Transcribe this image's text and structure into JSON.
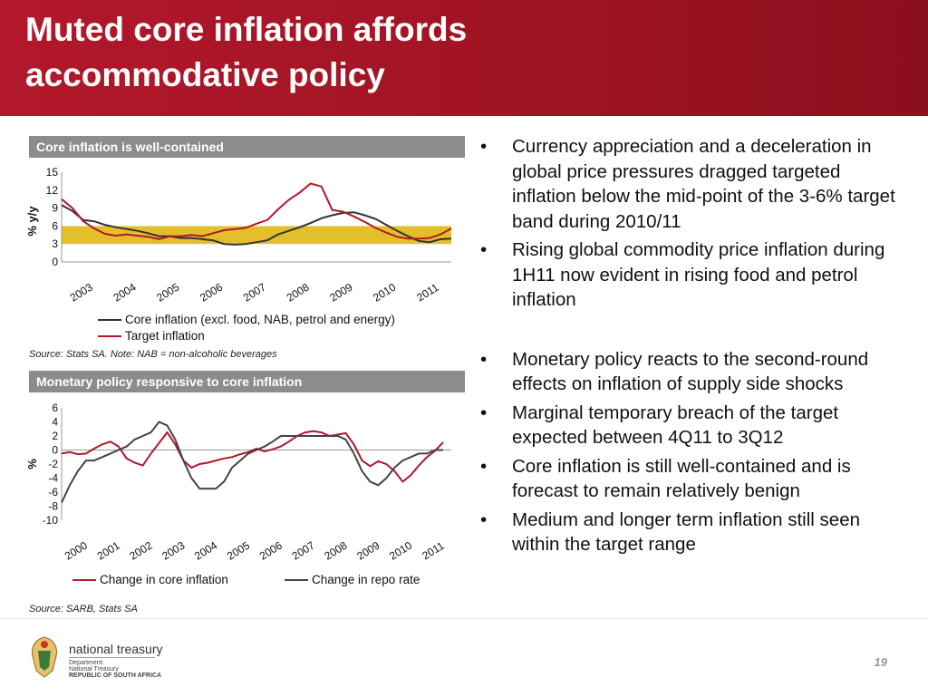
{
  "title": "Muted core inflation affords accommodative policy",
  "chart_data": [
    {
      "type": "line",
      "title": "Core inflation is well-contained",
      "ylabel": "% y/y",
      "ylim": [
        0,
        15
      ],
      "yticks": [
        "15",
        "12",
        "9",
        "6",
        "3",
        "0"
      ],
      "x_tick_labels": [
        "2003",
        "2004",
        "2005",
        "2006",
        "2007",
        "2008",
        "2009",
        "2010",
        "2011"
      ],
      "target_band": [
        3,
        6
      ],
      "band_color": "#e3c02b",
      "series": [
        {
          "name": "Core inflation (excl. food, NAB, petrol and energy)",
          "color": "#333333",
          "x": [
            2003.0,
            2003.25,
            2003.5,
            2003.75,
            2004.0,
            2004.25,
            2004.5,
            2004.75,
            2005.0,
            2005.25,
            2005.5,
            2005.75,
            2006.0,
            2006.25,
            2006.5,
            2006.75,
            2007.0,
            2007.25,
            2007.5,
            2007.75,
            2008.0,
            2008.25,
            2008.5,
            2008.75,
            2009.0,
            2009.25,
            2009.5,
            2009.75,
            2010.0,
            2010.25,
            2010.5,
            2010.75,
            2011.0,
            2011.25,
            2011.5,
            2011.75,
            2012.0
          ],
          "values": [
            9.5,
            8.5,
            7.0,
            6.8,
            6.2,
            5.8,
            5.5,
            5.2,
            4.8,
            4.3,
            4.3,
            4.0,
            4.0,
            3.8,
            3.6,
            3.0,
            2.9,
            3.0,
            3.3,
            3.6,
            4.6,
            5.2,
            5.8,
            6.5,
            7.3,
            7.8,
            8.2,
            8.3,
            7.8,
            7.2,
            6.2,
            5.2,
            4.3,
            3.5,
            3.3,
            3.8,
            3.9
          ]
        },
        {
          "name": "Target inflation",
          "color": "#b2182b",
          "x": [
            2003.0,
            2003.25,
            2003.5,
            2003.75,
            2004.0,
            2004.25,
            2004.5,
            2004.75,
            2005.0,
            2005.25,
            2005.5,
            2005.75,
            2006.0,
            2006.25,
            2006.5,
            2006.75,
            2007.0,
            2007.25,
            2007.5,
            2007.75,
            2008.0,
            2008.25,
            2008.5,
            2008.75,
            2009.0,
            2009.25,
            2009.5,
            2009.75,
            2010.0,
            2010.25,
            2010.5,
            2010.75,
            2011.0,
            2011.25,
            2011.5,
            2011.75,
            2012.0
          ],
          "values": [
            10.5,
            9.0,
            6.8,
            5.6,
            4.7,
            4.4,
            4.6,
            4.4,
            4.2,
            3.8,
            4.3,
            4.3,
            4.5,
            4.3,
            4.8,
            5.3,
            5.5,
            5.7,
            6.4,
            7.0,
            8.8,
            10.4,
            11.6,
            13.1,
            12.6,
            8.7,
            8.4,
            7.6,
            6.7,
            5.7,
            4.9,
            4.2,
            3.9,
            3.9,
            4.0,
            4.6,
            5.6
          ]
        }
      ]
    },
    {
      "type": "line",
      "title": "Monetary policy responsive to core inflation",
      "ylabel": "%",
      "ylim": [
        -10,
        6
      ],
      "yticks": [
        "6",
        "4",
        "2",
        "0",
        "-2",
        "-4",
        "-6",
        "-8",
        "-10"
      ],
      "x_tick_labels": [
        "2000",
        "2001",
        "2002",
        "2003",
        "2004",
        "2005",
        "2006",
        "2007",
        "2008",
        "2009",
        "2010",
        "2011"
      ],
      "series": [
        {
          "name": "Change in core inflation",
          "color": "#b2182b",
          "x": [
            2000.0,
            2000.25,
            2000.5,
            2000.75,
            2001.0,
            2001.25,
            2001.5,
            2001.75,
            2002.0,
            2002.25,
            2002.5,
            2002.75,
            2003.0,
            2003.25,
            2003.5,
            2003.75,
            2004.0,
            2004.25,
            2004.5,
            2004.75,
            2005.0,
            2005.25,
            2005.5,
            2005.75,
            2006.0,
            2006.25,
            2006.5,
            2006.75,
            2007.0,
            2007.25,
            2007.5,
            2007.75,
            2008.0,
            2008.25,
            2008.5,
            2008.75,
            2009.0,
            2009.25,
            2009.5,
            2009.75,
            2010.0,
            2010.25,
            2010.5,
            2010.75,
            2011.0,
            2011.25,
            2011.5,
            2011.75
          ],
          "values": [
            -0.5,
            -0.3,
            -0.6,
            -0.5,
            0.2,
            0.8,
            1.2,
            0.5,
            -1.2,
            -1.8,
            -2.2,
            -0.5,
            1.0,
            2.5,
            0.8,
            -1.5,
            -2.5,
            -2.0,
            -1.8,
            -1.5,
            -1.2,
            -1.0,
            -0.6,
            -0.3,
            0.2,
            -0.2,
            0.1,
            0.5,
            1.2,
            2.0,
            2.5,
            2.7,
            2.5,
            2.0,
            2.2,
            2.4,
            0.8,
            -1.5,
            -2.3,
            -1.6,
            -2.0,
            -3.0,
            -4.5,
            -3.6,
            -2.2,
            -1.0,
            -0.1,
            1.1
          ]
        },
        {
          "name": "Change in repo rate",
          "color": "#444444",
          "x": [
            2000.0,
            2000.25,
            2000.5,
            2000.75,
            2001.0,
            2001.25,
            2001.5,
            2001.75,
            2002.0,
            2002.25,
            2002.5,
            2002.75,
            2003.0,
            2003.25,
            2003.5,
            2003.75,
            2004.0,
            2004.25,
            2004.5,
            2004.75,
            2005.0,
            2005.25,
            2005.5,
            2005.75,
            2006.0,
            2006.25,
            2006.5,
            2006.75,
            2007.0,
            2007.25,
            2007.5,
            2007.75,
            2008.0,
            2008.25,
            2008.5,
            2008.75,
            2009.0,
            2009.25,
            2009.5,
            2009.75,
            2010.0,
            2010.25,
            2010.5,
            2010.75,
            2011.0,
            2011.25,
            2011.5,
            2011.75
          ],
          "values": [
            -7.5,
            -5.0,
            -3.0,
            -1.5,
            -1.5,
            -1.0,
            -0.5,
            0.0,
            0.5,
            1.5,
            2.0,
            2.5,
            4.0,
            3.5,
            1.5,
            -1.5,
            -4.0,
            -5.5,
            -5.5,
            -5.5,
            -4.5,
            -2.5,
            -1.5,
            -0.5,
            0.0,
            0.5,
            1.2,
            2.0,
            2.0,
            2.0,
            2.0,
            2.0,
            2.0,
            2.0,
            2.0,
            1.5,
            -0.5,
            -3.0,
            -4.5,
            -5.0,
            -4.0,
            -2.5,
            -1.5,
            -1.0,
            -0.5,
            -0.5,
            0.0,
            0.0
          ]
        }
      ]
    }
  ],
  "panels": {
    "top_header": "Core inflation is well-contained",
    "top_source": "Source: Stats SA.  Note: NAB = non-alcoholic beverages",
    "bottom_header": "Monetary policy responsive to core inflation",
    "bottom_source": "Source: SARB, Stats SA"
  },
  "bullets_group1": [
    "Currency appreciation and a deceleration in global price pressures dragged targeted inflation below the mid-point of the 3-6% target band during 2010/11",
    "Rising global commodity price inflation during 1H11 now evident in rising food and petrol inflation"
  ],
  "bullets_group2": [
    "Monetary policy reacts to the second-round effects on inflation of supply side shocks",
    "Marginal temporary breach of the target expected between 4Q11 to 3Q12",
    "Core inflation is still well-contained and is forecast to remain relatively benign",
    "Medium and longer term inflation still seen within the target range"
  ],
  "bullet_char": "•",
  "footer": {
    "logo_text": "national treasury",
    "dept_line1": "Department:",
    "dept_line2": "National Treasury",
    "dept_line3": "REPUBLIC OF SOUTH AFRICA",
    "page_number": "19"
  }
}
